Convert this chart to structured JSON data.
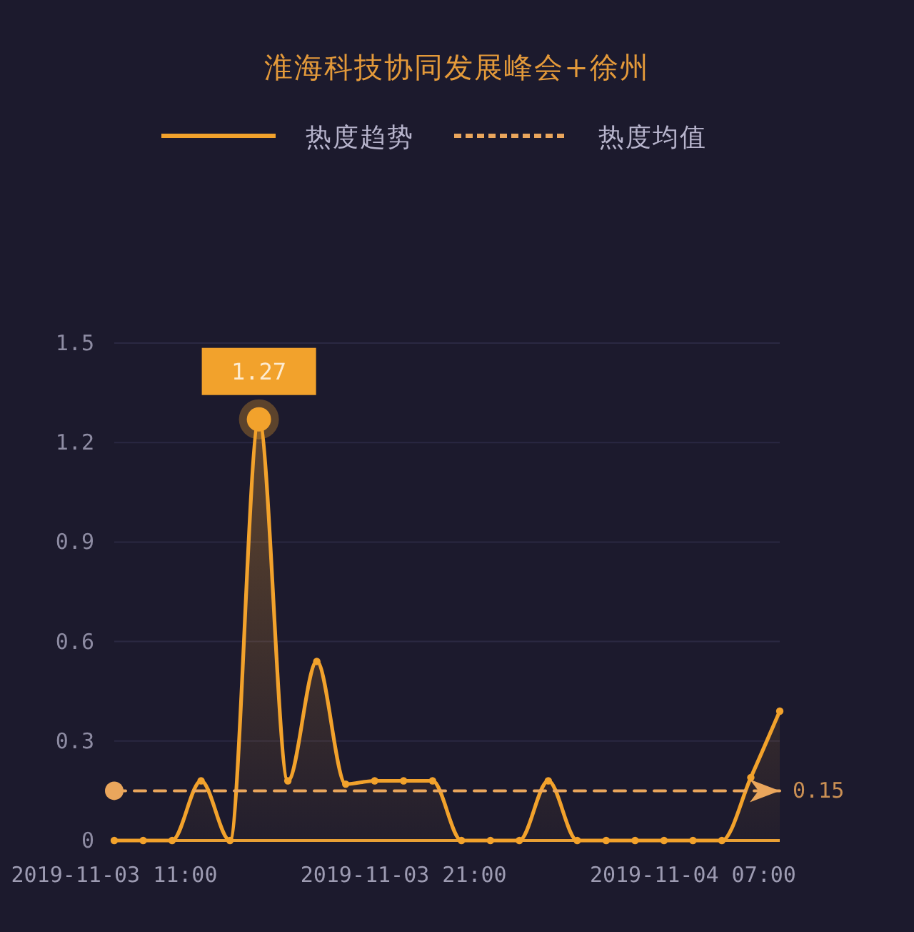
{
  "chart_data": {
    "type": "area",
    "title": "淮海科技协同发展峰会+徐州",
    "categories": [
      "2019-11-03 11:00",
      null,
      null,
      null,
      null,
      null,
      null,
      null,
      null,
      null,
      "2019-11-03 21:00",
      null,
      null,
      null,
      null,
      null,
      null,
      null,
      null,
      null,
      "2019-11-04 07:00",
      null,
      null,
      null
    ],
    "ylim": [
      0,
      1.5
    ],
    "yticks": [
      0,
      0.3,
      0.6,
      0.9,
      1.2,
      1.5
    ],
    "grid": "y",
    "legend": "top",
    "marker": "circle",
    "series": [
      {
        "name": "热度趋势",
        "color": "#f2a22c",
        "values": [
          0,
          0,
          0,
          0.18,
          0,
          1.27,
          0.18,
          0.54,
          0.17,
          0.18,
          0.18,
          0.18,
          0,
          0,
          0,
          0.18,
          0,
          0,
          0,
          0,
          0,
          0,
          0.19,
          0.39
        ],
        "value_labels": [
          null,
          null,
          null,
          null,
          null,
          "1.27",
          null,
          null,
          null,
          null,
          null,
          null,
          null,
          null,
          null,
          null,
          null,
          null,
          null,
          null,
          null,
          null,
          null,
          null
        ]
      },
      {
        "name": "热度均值",
        "type": "line",
        "color": "#eaa65c",
        "line_style": "dashed",
        "marker": "none",
        "values": [
          0.15,
          0.15,
          0.15,
          0.15,
          0.15,
          0.15,
          0.15,
          0.15,
          0.15,
          0.15,
          0.15,
          0.15,
          0.15,
          0.15,
          0.15,
          0.15,
          0.15,
          0.15,
          0.15,
          0.15,
          0.15,
          0.15,
          0.15,
          0.15
        ],
        "value_labels": [
          null,
          null,
          null,
          null,
          null,
          null,
          null,
          null,
          null,
          null,
          null,
          null,
          null,
          null,
          null,
          null,
          null,
          null,
          null,
          null,
          null,
          null,
          null,
          "0.15"
        ]
      }
    ]
  }
}
